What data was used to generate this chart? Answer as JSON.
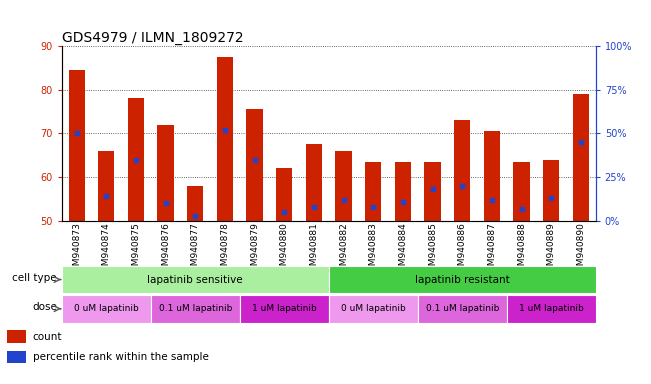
{
  "title": "GDS4979 / ILMN_1809272",
  "samples": [
    "GSM940873",
    "GSM940874",
    "GSM940875",
    "GSM940876",
    "GSM940877",
    "GSM940878",
    "GSM940879",
    "GSM940880",
    "GSM940881",
    "GSM940882",
    "GSM940883",
    "GSM940884",
    "GSM940885",
    "GSM940886",
    "GSM940887",
    "GSM940888",
    "GSM940889",
    "GSM940890"
  ],
  "counts": [
    84.5,
    66.0,
    78.0,
    72.0,
    58.0,
    87.5,
    75.5,
    62.0,
    67.5,
    66.0,
    63.5,
    63.5,
    63.5,
    73.0,
    70.5,
    63.5,
    64.0,
    79.0
  ],
  "percentile_ranks": [
    50,
    14,
    35,
    10,
    3,
    52,
    35,
    5,
    8,
    12,
    8,
    11,
    18,
    20,
    12,
    7,
    13,
    45
  ],
  "ymin": 50,
  "ymax": 90,
  "y2min": 0,
  "y2max": 100,
  "yticks": [
    50,
    60,
    70,
    80,
    90
  ],
  "y2ticks": [
    0,
    25,
    50,
    75,
    100
  ],
  "y2ticklabels": [
    "0%",
    "25%",
    "50%",
    "75%",
    "100%"
  ],
  "bar_color": "#cc2200",
  "marker_color": "#2244cc",
  "background_color": "#ffffff",
  "plot_bg_color": "#ffffff",
  "grid_color": "#000000",
  "cell_type_groups": [
    {
      "label": "lapatinib sensitive",
      "start": 0,
      "end": 9,
      "color": "#aaeea0"
    },
    {
      "label": "lapatinib resistant",
      "start": 9,
      "end": 18,
      "color": "#44cc44"
    }
  ],
  "dose_groups": [
    {
      "label": "0 uM lapatinib",
      "start": 0,
      "end": 3,
      "color": "#ee99ee"
    },
    {
      "label": "0.1 uM lapatinib",
      "start": 3,
      "end": 6,
      "color": "#dd66dd"
    },
    {
      "label": "1 uM lapatinib",
      "start": 6,
      "end": 9,
      "color": "#cc22cc"
    },
    {
      "label": "0 uM lapatinib",
      "start": 9,
      "end": 12,
      "color": "#ee99ee"
    },
    {
      "label": "0.1 uM lapatinib",
      "start": 12,
      "end": 15,
      "color": "#dd66dd"
    },
    {
      "label": "1 uM lapatinib",
      "start": 15,
      "end": 18,
      "color": "#cc22cc"
    }
  ],
  "xlabel_fontsize": 6.5,
  "ylabel_left_color": "#cc2200",
  "ylabel_right_color": "#2244cc",
  "title_fontsize": 10,
  "row_label_fontsize": 7.5,
  "dose_label_fontsize": 6.5,
  "bar_label_fontsize": 7.5
}
